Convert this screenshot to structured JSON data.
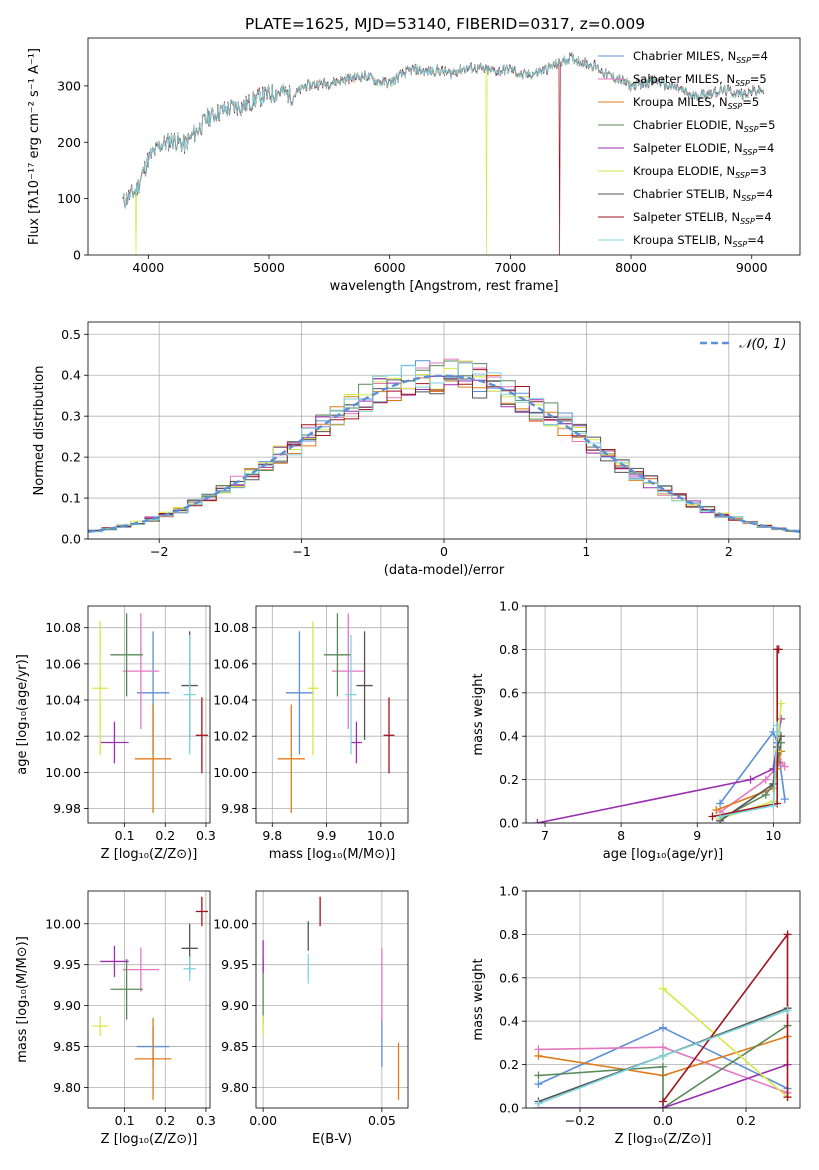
{
  "figure": {
    "title": "PLATE=1625, MJD=53140, FIBERID=0317, z=0.009"
  },
  "colors": [
    "#5b8fd6",
    "#e377c2",
    "#e07b1a",
    "#5a8a5a",
    "#9b30b0",
    "#d4e84a",
    "#555555",
    "#a0141e",
    "#7fd3dc"
  ],
  "models": [
    {
      "label": "Chabrier MILES",
      "nssp": "4"
    },
    {
      "label": "Salpeter MILES",
      "nssp": "5"
    },
    {
      "label": "Kroupa MILES",
      "nssp": "5"
    },
    {
      "label": "Chabrier ELODIE",
      "nssp": "5"
    },
    {
      "label": "Salpeter ELODIE",
      "nssp": "4"
    },
    {
      "label": "Kroupa ELODIE",
      "nssp": "3"
    },
    {
      "label": "Chabrier STELIB",
      "nssp": "4"
    },
    {
      "label": "Salpeter STELIB",
      "nssp": "4"
    },
    {
      "label": "Kroupa STELIB",
      "nssp": "4"
    }
  ],
  "chart_data": [
    {
      "id": "spectrum",
      "type": "line",
      "xlabel": "wavelength [Angstrom, rest frame]",
      "ylabel": "Flux [fλ10⁻¹⁷ erg cm⁻² s⁻¹ A⁻¹]",
      "xlim": [
        3500,
        9400
      ],
      "ylim": [
        0,
        385
      ],
      "xticks": [
        "4000",
        "5000",
        "6000",
        "7000",
        "8000",
        "9000"
      ],
      "yticks": [
        "0",
        "100",
        "200",
        "300"
      ],
      "continuum": [
        [
          3790,
          95
        ],
        [
          3900,
          115
        ],
        [
          4000,
          170
        ],
        [
          4100,
          195
        ],
        [
          4200,
          205
        ],
        [
          4300,
          195
        ],
        [
          4400,
          220
        ],
        [
          4500,
          245
        ],
        [
          4600,
          255
        ],
        [
          4700,
          262
        ],
        [
          4800,
          265
        ],
        [
          4900,
          278
        ],
        [
          5000,
          285
        ],
        [
          5100,
          290
        ],
        [
          5200,
          282
        ],
        [
          5300,
          300
        ],
        [
          5400,
          303
        ],
        [
          5500,
          305
        ],
        [
          5600,
          310
        ],
        [
          5700,
          315
        ],
        [
          5800,
          318
        ],
        [
          5900,
          308
        ],
        [
          6000,
          305
        ],
        [
          6100,
          320
        ],
        [
          6200,
          330
        ],
        [
          6300,
          325
        ],
        [
          6400,
          328
        ],
        [
          6500,
          322
        ],
        [
          6600,
          330
        ],
        [
          6700,
          332
        ],
        [
          6800,
          328
        ],
        [
          6900,
          326
        ],
        [
          7000,
          330
        ],
        [
          7100,
          318
        ],
        [
          7200,
          322
        ],
        [
          7300,
          330
        ],
        [
          7400,
          340
        ],
        [
          7500,
          350
        ],
        [
          7600,
          342
        ],
        [
          7700,
          335
        ],
        [
          7800,
          320
        ],
        [
          7900,
          312
        ],
        [
          8000,
          300
        ],
        [
          8100,
          305
        ],
        [
          8200,
          310
        ],
        [
          8300,
          300
        ],
        [
          8400,
          295
        ],
        [
          8500,
          282
        ],
        [
          8600,
          285
        ],
        [
          8700,
          290
        ],
        [
          8800,
          292
        ],
        [
          8900,
          285
        ],
        [
          9000,
          290
        ],
        [
          9100,
          292
        ]
      ],
      "drops": [
        {
          "model": 5,
          "x": 6800
        },
        {
          "model": 7,
          "x": 7410
        },
        {
          "model": 5,
          "x": 3900
        }
      ]
    },
    {
      "id": "residuals",
      "type": "histogram",
      "xlabel": "(data-model)/error",
      "ylabel": "Normed distribution",
      "xlim": [
        -2.5,
        2.5
      ],
      "ylim": [
        0,
        0.53
      ],
      "xticks": [
        "−2",
        "−1",
        "0",
        "1",
        "2"
      ],
      "yticks": [
        "0.0",
        "0.1",
        "0.2",
        "0.3",
        "0.4",
        "0.5"
      ],
      "bin_width": 0.1,
      "bin_start": -2.5,
      "bins": 50,
      "seed": 7,
      "reference": {
        "label": "𝒩(0, 1)"
      }
    },
    {
      "id": "age-vs-Z",
      "type": "errorbar",
      "xlabel": "Z [log₁₀(Z/Z⊙)]",
      "ylabel": "age  [log₁₀(age/yr)]",
      "xlim": [
        0.01,
        0.31
      ],
      "ylim": [
        9.972,
        10.092
      ],
      "xticks": [
        "0.1",
        "0.2",
        "0.3"
      ],
      "yticks": [
        "9.98",
        "10.00",
        "10.02",
        "10.04",
        "10.06",
        "10.08"
      ],
      "points": [
        {
          "x": 0.17,
          "y": 10.044,
          "xerr": 0.04,
          "yerr": 0.034
        },
        {
          "x": 0.14,
          "y": 10.056,
          "xerr": 0.045,
          "yerr": 0.032
        },
        {
          "x": 0.17,
          "y": 10.0075,
          "xerr": 0.045,
          "yerr": 0.03
        },
        {
          "x": 0.105,
          "y": 10.065,
          "xerr": 0.04,
          "yerr": 0.023
        },
        {
          "x": 0.075,
          "y": 10.0165,
          "xerr": 0.035,
          "yerr": 0.0115
        },
        {
          "x": 0.04,
          "y": 10.0465,
          "xerr": 0.02,
          "yerr": 0.037
        },
        {
          "x": 0.26,
          "y": 10.048,
          "xerr": 0.02,
          "yerr": 0.03
        },
        {
          "x": 0.29,
          "y": 10.0205,
          "xerr": 0.015,
          "yerr": 0.021
        },
        {
          "x": 0.26,
          "y": 10.043,
          "xerr": 0.015,
          "yerr": 0.033
        }
      ]
    },
    {
      "id": "age-vs-mass",
      "type": "errorbar",
      "xlabel": "mass [log₁₀(M/M⊙)]",
      "ylabel": "",
      "xlim": [
        9.77,
        10.05
      ],
      "ylim": [
        9.972,
        10.092
      ],
      "xticks": [
        "9.8",
        "9.9",
        "10.0"
      ],
      "yticks": [
        "9.98",
        "10.00",
        "10.02",
        "10.04",
        "10.06",
        "10.08"
      ],
      "points": [
        {
          "x": 9.85,
          "y": 10.044,
          "xerr": 0.025,
          "yerr": 0.034
        },
        {
          "x": 9.94,
          "y": 10.056,
          "xerr": 0.03,
          "yerr": 0.032
        },
        {
          "x": 9.835,
          "y": 10.0075,
          "xerr": 0.025,
          "yerr": 0.03
        },
        {
          "x": 9.92,
          "y": 10.065,
          "xerr": 0.025,
          "yerr": 0.023
        },
        {
          "x": 9.955,
          "y": 10.0165,
          "xerr": 0.01,
          "yerr": 0.0115
        },
        {
          "x": 9.875,
          "y": 10.0465,
          "xerr": 0.01,
          "yerr": 0.037
        },
        {
          "x": 9.97,
          "y": 10.048,
          "xerr": 0.015,
          "yerr": 0.03
        },
        {
          "x": 10.015,
          "y": 10.0205,
          "xerr": 0.01,
          "yerr": 0.021
        },
        {
          "x": 9.945,
          "y": 10.043,
          "xerr": 0.01,
          "yerr": 0.033
        }
      ]
    },
    {
      "id": "weight-vs-age",
      "type": "line",
      "xlabel": "age  [log₁₀(age/yr)]",
      "ylabel": "mass weight",
      "xlim": [
        6.75,
        10.35
      ],
      "ylim": [
        0,
        1
      ],
      "xticks": [
        "7",
        "8",
        "9",
        "10"
      ],
      "yticks": [
        "0.0",
        "0.2",
        "0.4",
        "0.6",
        "0.8",
        "1.0"
      ],
      "series": [
        {
          "points": [
            [
              9.3,
              0.09
            ],
            [
              10.0,
              0.42
            ],
            [
              10.05,
              0.37
            ],
            [
              10.15,
              0.11
            ]
          ]
        },
        {
          "points": [
            [
              9.3,
              0.05
            ],
            [
              9.9,
              0.2
            ],
            [
              10.1,
              0.28
            ],
            [
              10.15,
              0.26
            ]
          ]
        },
        {
          "points": [
            [
              9.25,
              0.06
            ],
            [
              10.0,
              0.16
            ],
            [
              10.05,
              0.25
            ],
            [
              10.1,
              0.33
            ]
          ]
        },
        {
          "points": [
            [
              9.3,
              0.02
            ],
            [
              9.9,
              0.13
            ],
            [
              10.0,
              0.18
            ],
            [
              10.05,
              0.28
            ],
            [
              10.1,
              0.37
            ]
          ]
        },
        {
          "points": [
            [
              6.9,
              0.0
            ],
            [
              9.7,
              0.2
            ],
            [
              10.0,
              0.25
            ],
            [
              10.1,
              0.48
            ]
          ]
        },
        {
          "points": [
            [
              9.3,
              0.02
            ],
            [
              10.0,
              0.1
            ],
            [
              10.05,
              0.33
            ],
            [
              10.1,
              0.55
            ]
          ]
        },
        {
          "points": [
            [
              9.3,
              0.01
            ],
            [
              10.0,
              0.18
            ],
            [
              10.05,
              0.35
            ],
            [
              10.1,
              0.4
            ]
          ]
        },
        {
          "points": [
            [
              9.2,
              0.03
            ],
            [
              10.05,
              0.09
            ],
            [
              10.05,
              0.8
            ],
            [
              10.07,
              0.8
            ]
          ]
        },
        {
          "points": [
            [
              9.3,
              0.03
            ],
            [
              10.0,
              0.08
            ],
            [
              10.05,
              0.42
            ],
            [
              10.05,
              0.45
            ]
          ]
        }
      ]
    },
    {
      "id": "mass-vs-Z",
      "type": "errorbar",
      "xlabel": "Z [log₁₀(Z/Z⊙)]",
      "ylabel": "mass [log₁₀(M/M⊙)]",
      "xlim": [
        0.01,
        0.31
      ],
      "ylim": [
        9.775,
        10.04
      ],
      "xticks": [
        "0.1",
        "0.2",
        "0.3"
      ],
      "yticks": [
        "9.80",
        "9.85",
        "9.90",
        "9.95",
        "10.00"
      ],
      "points": [
        {
          "x": 0.17,
          "y": 9.85,
          "xerr": 0.04,
          "yerr": 0.025
        },
        {
          "x": 0.14,
          "y": 9.944,
          "xerr": 0.045,
          "yerr": 0.027
        },
        {
          "x": 0.17,
          "y": 9.835,
          "xerr": 0.045,
          "yerr": 0.05
        },
        {
          "x": 0.105,
          "y": 9.92,
          "xerr": 0.04,
          "yerr": 0.037
        },
        {
          "x": 0.075,
          "y": 9.954,
          "xerr": 0.035,
          "yerr": 0.019
        },
        {
          "x": 0.04,
          "y": 9.875,
          "xerr": 0.02,
          "yerr": 0.012
        },
        {
          "x": 0.26,
          "y": 9.97,
          "xerr": 0.02,
          "yerr": 0.03
        },
        {
          "x": 0.29,
          "y": 10.015,
          "xerr": 0.015,
          "yerr": 0.018
        },
        {
          "x": 0.26,
          "y": 9.945,
          "xerr": 0.015,
          "yerr": 0.015
        }
      ]
    },
    {
      "id": "mass-vs-ebv",
      "type": "errorbar",
      "xlabel": "E(B-V)",
      "ylabel": "",
      "xlim": [
        -0.003,
        0.061
      ],
      "ylim": [
        9.775,
        10.04
      ],
      "xticks": [
        "0.00",
        "0.05"
      ],
      "yticks": [
        "9.80",
        "9.85",
        "9.90",
        "9.95",
        "10.00"
      ],
      "points": [
        {
          "x": 0.05,
          "y": 9.855,
          "xerr": 0,
          "yerr": 0.03
        },
        {
          "x": 0.05,
          "y": 9.925,
          "xerr": 0,
          "yerr": 0.045
        },
        {
          "x": 0.057,
          "y": 9.82,
          "xerr": 0,
          "yerr": 0.035
        },
        {
          "x": 0.0,
          "y": 9.918,
          "xerr": 0,
          "yerr": 0.04
        },
        {
          "x": 0.0,
          "y": 9.96,
          "xerr": 0,
          "yerr": 0.02
        },
        {
          "x": 0.0,
          "y": 9.876,
          "xerr": 0,
          "yerr": 0.012
        },
        {
          "x": 0.019,
          "y": 9.985,
          "xerr": 0,
          "yerr": 0.018
        },
        {
          "x": 0.024,
          "y": 10.015,
          "xerr": 0,
          "yerr": 0.018
        },
        {
          "x": 0.019,
          "y": 9.945,
          "xerr": 0,
          "yerr": 0.018
        }
      ]
    },
    {
      "id": "weight-vs-Z",
      "type": "line",
      "xlabel": "Z [log₁₀(Z/Z⊙)]",
      "ylabel": "mass weight",
      "xlim": [
        -0.33,
        0.33
      ],
      "ylim": [
        0,
        1
      ],
      "xticks": [
        "−0.2",
        "0.0",
        "0.2"
      ],
      "yticks": [
        "0.0",
        "0.2",
        "0.4",
        "0.6",
        "0.8",
        "1.0"
      ],
      "series": [
        {
          "points": [
            [
              -0.3,
              0.11
            ],
            [
              0.0,
              0.37
            ],
            [
              0.3,
              0.09
            ]
          ]
        },
        {
          "points": [
            [
              -0.3,
              0.27
            ],
            [
              0.0,
              0.28
            ],
            [
              0.3,
              0.07
            ]
          ]
        },
        {
          "points": [
            [
              -0.3,
              0.24
            ],
            [
              0.0,
              0.15
            ],
            [
              0.3,
              0.33
            ]
          ]
        },
        {
          "points": [
            [
              -0.3,
              0.15
            ],
            [
              0.0,
              0.19
            ],
            [
              0.0,
              0.0
            ],
            [
              0.3,
              0.38
            ]
          ]
        },
        {
          "points": [
            [
              -0.3,
              0.0
            ],
            [
              0.0,
              0.0
            ],
            [
              0.3,
              0.2
            ]
          ]
        },
        {
          "points": [
            [
              0.0,
              0.55
            ],
            [
              0.3,
              0.05
            ]
          ]
        },
        {
          "points": [
            [
              -0.3,
              0.03
            ],
            [
              0.0,
              0.24
            ],
            [
              0.3,
              0.46
            ]
          ]
        },
        {
          "points": [
            [
              0.0,
              0.03
            ],
            [
              0.3,
              0.8
            ],
            [
              0.3,
              0.05
            ]
          ]
        },
        {
          "points": [
            [
              -0.3,
              0.02
            ],
            [
              0.0,
              0.24
            ],
            [
              0.3,
              0.45
            ]
          ]
        }
      ]
    }
  ]
}
